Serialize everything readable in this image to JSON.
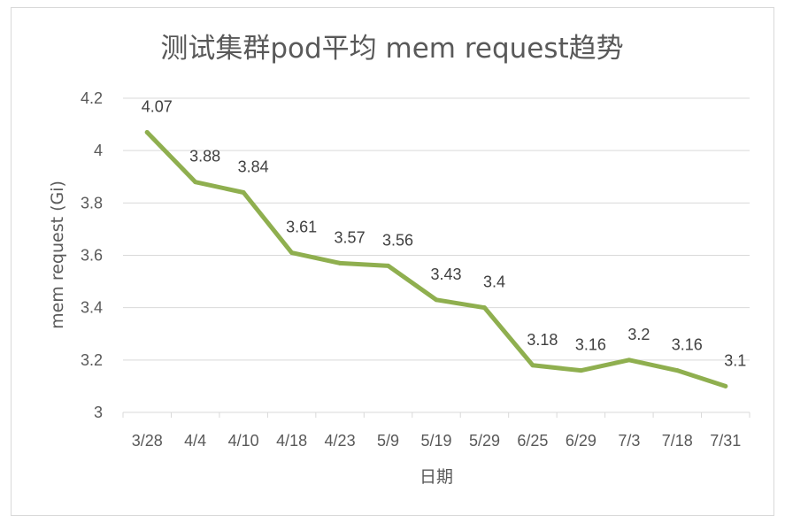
{
  "chart_data": {
    "type": "line",
    "title": "测试集群pod平均 mem request趋势",
    "xlabel": "日期",
    "ylabel": "mem request (Gi)",
    "categories": [
      "3/28",
      "4/4",
      "4/10",
      "4/18",
      "4/23",
      "5/9",
      "5/19",
      "5/29",
      "6/25",
      "6/29",
      "7/3",
      "7/18",
      "7/31"
    ],
    "series": [
      {
        "values": [
          4.07,
          3.88,
          3.84,
          3.61,
          3.57,
          3.56,
          3.43,
          3.4,
          3.18,
          3.16,
          3.2,
          3.16,
          3.1
        ],
        "labels": [
          "4.07",
          "3.88",
          "3.84",
          "3.61",
          "3.57",
          "3.56",
          "3.43",
          "3.4",
          "3.18",
          "3.16",
          "3.2",
          "3.16",
          "3.1"
        ],
        "color": "#8faf4f"
      }
    ],
    "yticks": [
      "3",
      "3.2",
      "3.4",
      "3.6",
      "3.8",
      "4",
      "4.2"
    ],
    "ylim": [
      3,
      4.2
    ],
    "grid": true,
    "legend": "none"
  }
}
